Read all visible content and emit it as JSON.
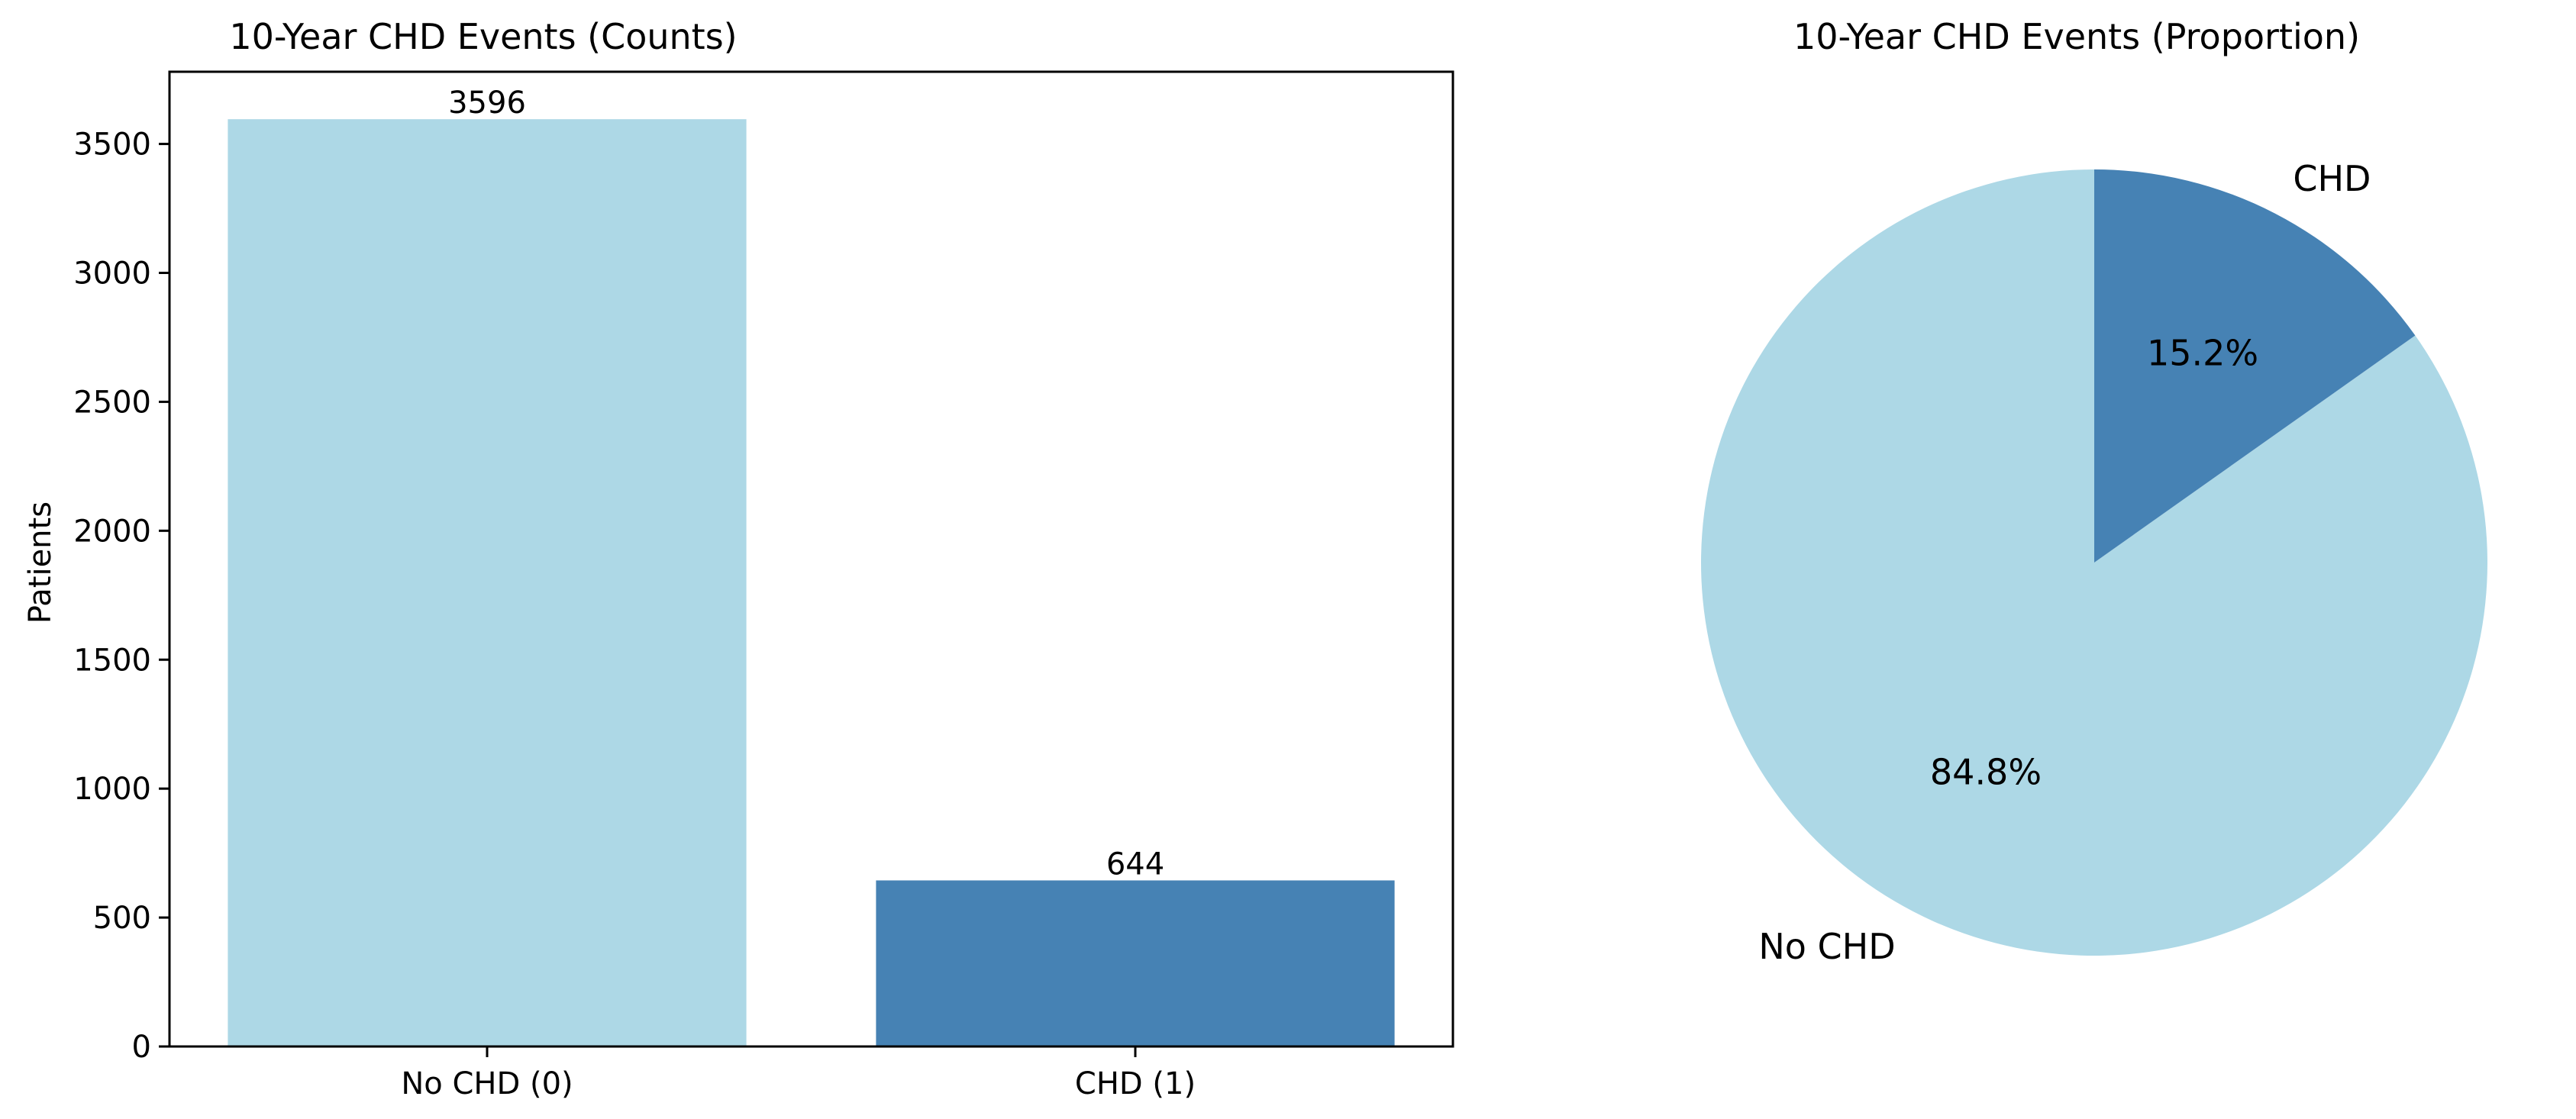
{
  "chart_data": [
    {
      "type": "bar",
      "title": "10-Year CHD Events (Counts)",
      "xlabel": "",
      "ylabel": "Patients",
      "categories": [
        "No CHD (0)",
        "CHD (1)"
      ],
      "values": [
        3596,
        644
      ],
      "value_labels": [
        "3596",
        "644"
      ],
      "colors": [
        "#add8e6",
        "#4682b4"
      ],
      "ylim": [
        0,
        3780
      ],
      "yticks": [
        0,
        500,
        1000,
        1500,
        2000,
        2500,
        3000,
        3500
      ],
      "ytick_labels": [
        "0",
        "500",
        "1000",
        "1500",
        "2000",
        "2500",
        "3000",
        "3500"
      ],
      "grid": false,
      "legend": false
    },
    {
      "type": "pie",
      "title": "10-Year CHD Events (Proportion)",
      "labels": [
        "No CHD",
        "CHD"
      ],
      "values": [
        84.8,
        15.2
      ],
      "pct_labels": [
        "84.8%",
        "15.2%"
      ],
      "colors": [
        "#add8e6",
        "#4682b4"
      ],
      "start_angle_deg": 90,
      "direction": "counterclockwise",
      "legend": false
    }
  ]
}
